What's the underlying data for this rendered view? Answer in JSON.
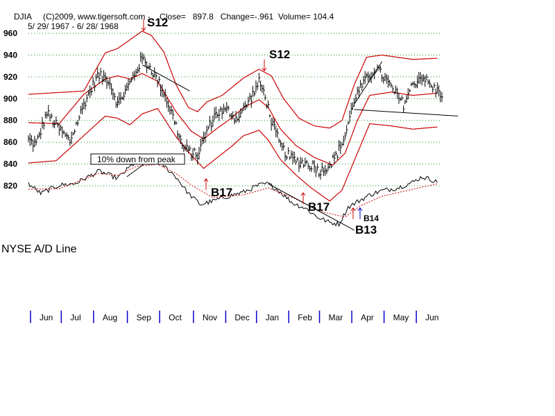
{
  "header": {
    "line1": "DJIA     (C)2009, www.tigersoft.com -    Close=   897.8   Change=-.961  Volume= 104.4",
    "line2": "5/ 29/ 1967 - 6/ 28/ 1968"
  },
  "chart_data": {
    "type": "line",
    "title": "",
    "xlabel": "",
    "ylabel": "",
    "ylim": [
      810,
      962
    ],
    "yticks": [
      820,
      840,
      860,
      880,
      900,
      920,
      940,
      960
    ],
    "grid": true,
    "months": [
      "Jun",
      "Jul",
      "Aug",
      "Sep",
      "Oct",
      "Nov",
      "Dec",
      "Jan",
      "Feb",
      "Mar",
      "Apr",
      "May",
      "Jun"
    ],
    "month_tick_index": [
      0,
      20,
      41,
      63,
      84,
      106,
      127,
      147,
      168,
      188,
      209,
      230,
      251
    ],
    "n_points": 270,
    "colors": {
      "price": "#000000",
      "bands": "#cc0000",
      "grid": "#1a8f1a",
      "month_ticks": "#0000cc",
      "ad_ma": "#cc0000",
      "signals": "#cc0000",
      "signal_b14": "#0000cc"
    },
    "series": [
      {
        "name": "DJIA",
        "knots": [
          [
            0,
            862
          ],
          [
            5,
            858
          ],
          [
            12,
            887
          ],
          [
            20,
            872
          ],
          [
            27,
            861
          ],
          [
            37,
            898
          ],
          [
            45,
            921
          ],
          [
            52,
            918
          ],
          [
            58,
            895
          ],
          [
            66,
            914
          ],
          [
            74,
            937
          ],
          [
            80,
            927
          ],
          [
            88,
            906
          ],
          [
            95,
            880
          ],
          [
            100,
            856
          ],
          [
            105,
            851
          ],
          [
            110,
            848
          ],
          [
            116,
            870
          ],
          [
            122,
            887
          ],
          [
            130,
            889
          ],
          [
            135,
            882
          ],
          [
            140,
            890
          ],
          [
            146,
            904
          ],
          [
            150,
            915
          ],
          [
            154,
            903
          ],
          [
            158,
            880
          ],
          [
            164,
            856
          ],
          [
            170,
            846
          ],
          [
            174,
            843
          ],
          [
            180,
            841
          ],
          [
            186,
            838
          ],
          [
            190,
            833
          ],
          [
            196,
            840
          ],
          [
            200,
            847
          ],
          [
            206,
            866
          ],
          [
            212,
            900
          ],
          [
            218,
            914
          ],
          [
            226,
            928
          ],
          [
            232,
            918
          ],
          [
            238,
            906
          ],
          [
            244,
            895
          ],
          [
            250,
            913
          ],
          [
            256,
            921
          ],
          [
            262,
            911
          ],
          [
            268,
            905
          ]
        ]
      },
      {
        "name": "",
        "knots": [
          [
            0,
            904
          ],
          [
            36,
            907
          ],
          [
            50,
            942
          ],
          [
            58,
            946
          ],
          [
            68,
            956
          ],
          [
            74,
            962
          ],
          [
            80,
            958
          ],
          [
            88,
            943
          ],
          [
            96,
            913
          ],
          [
            104,
            892
          ],
          [
            110,
            888
          ],
          [
            116,
            897
          ],
          [
            126,
            903
          ],
          [
            140,
            919
          ],
          [
            150,
            927
          ],
          [
            158,
            921
          ],
          [
            166,
            900
          ],
          [
            176,
            882
          ],
          [
            186,
            875
          ],
          [
            196,
            873
          ],
          [
            204,
            880
          ],
          [
            212,
            913
          ],
          [
            220,
            938
          ],
          [
            230,
            940
          ],
          [
            250,
            936
          ],
          [
            266,
            937
          ]
        ]
      },
      {
        "name": "",
        "knots": [
          [
            0,
            878
          ],
          [
            20,
            877
          ],
          [
            36,
            904
          ],
          [
            50,
            918
          ],
          [
            58,
            921
          ],
          [
            66,
            918
          ],
          [
            74,
            923
          ],
          [
            84,
            916
          ],
          [
            96,
            888
          ],
          [
            106,
            870
          ],
          [
            114,
            863
          ],
          [
            122,
            872
          ],
          [
            132,
            882
          ],
          [
            140,
            892
          ],
          [
            150,
            899
          ],
          [
            156,
            892
          ],
          [
            164,
            872
          ],
          [
            174,
            857
          ],
          [
            186,
            846
          ],
          [
            198,
            839
          ],
          [
            206,
            850
          ],
          [
            214,
            880
          ],
          [
            222,
            903
          ],
          [
            236,
            906
          ],
          [
            250,
            903
          ],
          [
            266,
            905
          ]
        ]
      },
      {
        "name": "",
        "knots": [
          [
            0,
            841
          ],
          [
            18,
            843
          ],
          [
            36,
            866
          ],
          [
            50,
            884
          ],
          [
            58,
            882
          ],
          [
            66,
            876
          ],
          [
            74,
            886
          ],
          [
            84,
            891
          ],
          [
            96,
            865
          ],
          [
            106,
            848
          ],
          [
            114,
            836
          ],
          [
            122,
            845
          ],
          [
            132,
            856
          ],
          [
            140,
            866
          ],
          [
            150,
            871
          ],
          [
            156,
            862
          ],
          [
            164,
            844
          ],
          [
            174,
            830
          ],
          [
            184,
            818
          ],
          [
            196,
            806
          ],
          [
            204,
            816
          ],
          [
            214,
            850
          ],
          [
            222,
            877
          ],
          [
            236,
            875
          ],
          [
            250,
            872
          ],
          [
            266,
            874
          ]
        ]
      }
    ],
    "ad_line": {
      "name": "NYSE A/D Line",
      "knots": [
        [
          0,
          40
        ],
        [
          8,
          26
        ],
        [
          20,
          38
        ],
        [
          30,
          40
        ],
        [
          46,
          58
        ],
        [
          58,
          48
        ],
        [
          70,
          72
        ],
        [
          84,
          74
        ],
        [
          96,
          50
        ],
        [
          104,
          26
        ],
        [
          112,
          10
        ],
        [
          120,
          15
        ],
        [
          130,
          22
        ],
        [
          140,
          28
        ],
        [
          150,
          38
        ],
        [
          156,
          40
        ],
        [
          164,
          28
        ],
        [
          172,
          12
        ],
        [
          180,
          5
        ],
        [
          188,
          -8
        ],
        [
          196,
          -16
        ],
        [
          202,
          -18
        ],
        [
          208,
          6
        ],
        [
          214,
          14
        ],
        [
          222,
          24
        ],
        [
          230,
          30
        ],
        [
          240,
          34
        ],
        [
          250,
          42
        ],
        [
          256,
          50
        ],
        [
          262,
          46
        ],
        [
          266,
          42
        ]
      ]
    },
    "ad_ma": {
      "knots": [
        [
          0,
          32
        ],
        [
          20,
          33
        ],
        [
          46,
          55
        ],
        [
          58,
          52
        ],
        [
          70,
          65
        ],
        [
          84,
          68
        ],
        [
          96,
          55
        ],
        [
          106,
          38
        ],
        [
          120,
          20
        ],
        [
          140,
          24
        ],
        [
          156,
          34
        ],
        [
          172,
          20
        ],
        [
          190,
          0
        ],
        [
          206,
          -8
        ],
        [
          216,
          8
        ],
        [
          230,
          22
        ],
        [
          250,
          32
        ],
        [
          266,
          40
        ]
      ]
    },
    "signals": [
      {
        "label": "S12",
        "index": 80,
        "dir": "down",
        "size": "large"
      },
      {
        "label": "S12",
        "index": 163,
        "dir": "down",
        "size": "large"
      },
      {
        "label": "B17",
        "index": 126,
        "dir": "up",
        "size": "large"
      },
      {
        "label": "B17",
        "index": 189,
        "dir": "up",
        "size": "large"
      },
      {
        "label": "B13",
        "index": 214,
        "dir": "up",
        "size": "large"
      },
      {
        "label": "B14",
        "index": 219,
        "dir": "up",
        "size": "small"
      }
    ],
    "annotation": "10% down from peak"
  }
}
